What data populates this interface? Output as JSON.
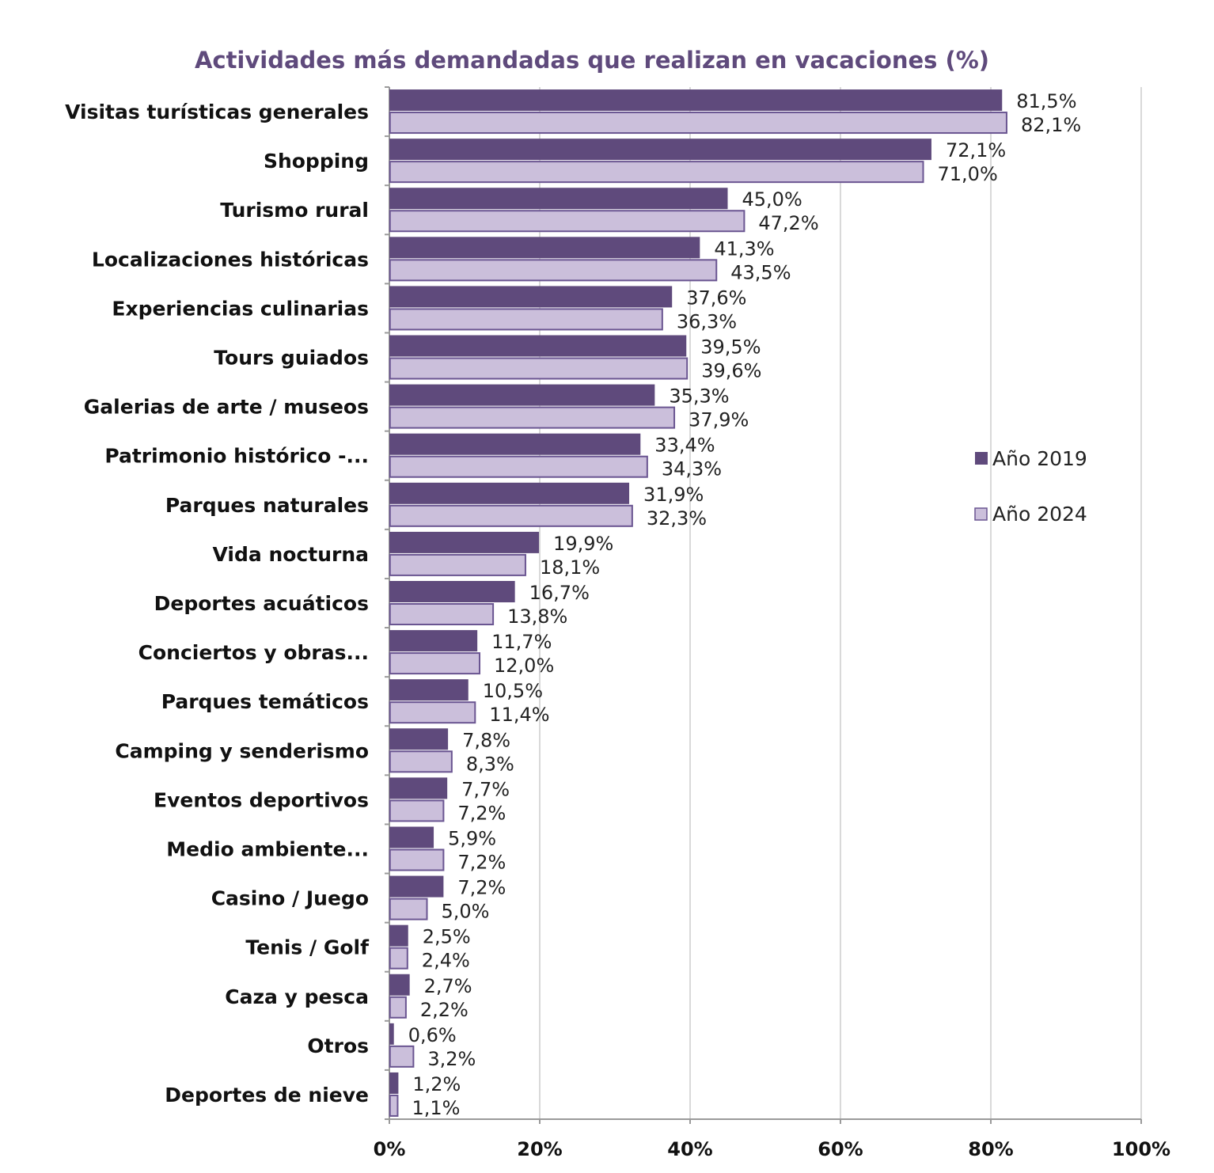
{
  "chart_data": {
    "type": "bar",
    "orientation": "horizontal",
    "title": "Actividades más demandadas que realizan en vacaciones (%)",
    "xlabel": "",
    "ylabel": "",
    "xlim": [
      0,
      100
    ],
    "x_ticks": [
      "0%",
      "20%",
      "40%",
      "60%",
      "80%",
      "100%"
    ],
    "grid": true,
    "legend_position": "right",
    "categories": [
      "Visitas turísticas generales",
      "Shopping",
      "Turismo rural",
      "Localizaciones históricas",
      "Experiencias culinarias",
      "Tours guiados",
      "Galerias de arte / museos",
      "Patrimonio histórico -...",
      "Parques naturales",
      "Vida nocturna",
      "Deportes acuáticos",
      "Conciertos y obras...",
      "Parques temáticos",
      "Camping y senderismo",
      "Eventos deportivos",
      "Medio ambiente...",
      "Casino / Juego",
      "Tenis / Golf",
      "Caza y pesca",
      "Otros",
      "Deportes de nieve"
    ],
    "series": [
      {
        "name": "Año 2019",
        "color": "#5f4a7c",
        "values": [
          81.5,
          72.1,
          45.0,
          41.3,
          37.6,
          39.5,
          35.3,
          33.4,
          31.9,
          19.9,
          16.7,
          11.7,
          10.5,
          7.8,
          7.7,
          5.9,
          7.2,
          2.5,
          2.7,
          0.6,
          1.2
        ],
        "labels": [
          "81,5%",
          "72,1%",
          "45,0%",
          "41,3%",
          "37,6%",
          "39,5%",
          "35,3%",
          "33,4%",
          "31,9%",
          "19,9%",
          "16,7%",
          "11,7%",
          "10,5%",
          "7,8%",
          "7,7%",
          "5,9%",
          "7,2%",
          "2,5%",
          "2,7%",
          "0,6%",
          "1,2%"
        ]
      },
      {
        "name": "Año 2024",
        "color": "#cbbfdb",
        "border_color": "#6a5591",
        "values": [
          82.1,
          71.0,
          47.2,
          43.5,
          36.3,
          39.6,
          37.9,
          34.3,
          32.3,
          18.1,
          13.8,
          12.0,
          11.4,
          8.3,
          7.2,
          7.2,
          5.0,
          2.4,
          2.2,
          3.2,
          1.1
        ],
        "labels": [
          "82,1%",
          "71,0%",
          "47,2%",
          "43,5%",
          "36,3%",
          "39,6%",
          "37,9%",
          "34,3%",
          "32,3%",
          "18,1%",
          "13,8%",
          "12,0%",
          "11,4%",
          "8,3%",
          "7,2%",
          "7,2%",
          "5,0%",
          "2,4%",
          "2,2%",
          "3,2%",
          "1,1%"
        ]
      }
    ]
  }
}
